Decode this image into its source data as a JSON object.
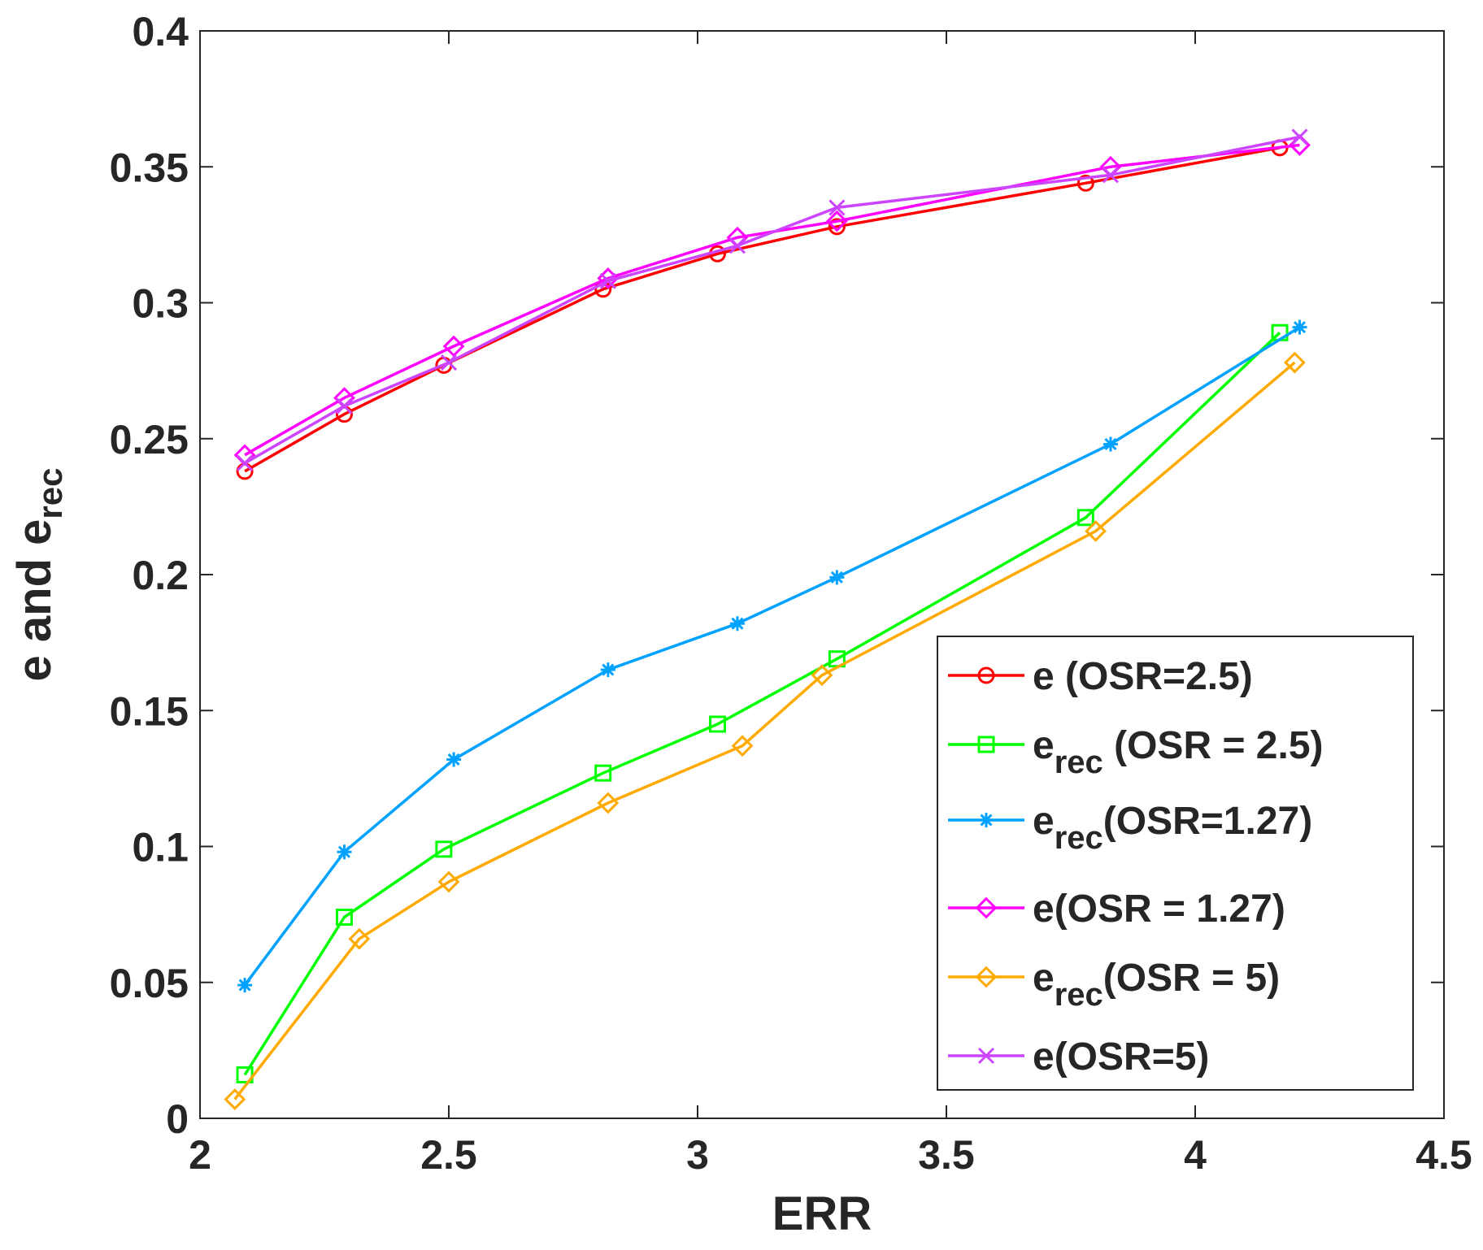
{
  "chart_data": {
    "type": "line",
    "title": "",
    "xlabel": "ERR",
    "ylabel_main": "e and e",
    "ylabel_sub": "rec",
    "xlim": [
      2,
      4.5
    ],
    "ylim": [
      0,
      0.4
    ],
    "xticks": [
      "2",
      "2.5",
      "3",
      "3.5",
      "4",
      "4.5"
    ],
    "yticks": [
      "0",
      "0.05",
      "0.1",
      "0.15",
      "0.2",
      "0.25",
      "0.3",
      "0.35",
      "0.4"
    ],
    "legend_position": "bottom-right",
    "series": [
      {
        "key": "e-osr-2-5",
        "label_main": "e (OSR=2.5)",
        "label_sub": "",
        "label_rest": "",
        "marker": "circle",
        "color": "#ff0000",
        "x": [
          2.09,
          2.29,
          2.49,
          2.81,
          3.04,
          3.28,
          3.78,
          4.17
        ],
        "y": [
          0.238,
          0.259,
          0.277,
          0.305,
          0.318,
          0.328,
          0.344,
          0.357
        ]
      },
      {
        "key": "erec-osr-2-5",
        "label_main": "e",
        "label_sub": "rec",
        "label_rest": " (OSR = 2.5)",
        "marker": "square",
        "color": "#00ff00",
        "x": [
          2.09,
          2.29,
          2.49,
          2.81,
          3.04,
          3.28,
          3.78,
          4.17
        ],
        "y": [
          0.016,
          0.074,
          0.099,
          0.127,
          0.145,
          0.169,
          0.221,
          0.289
        ]
      },
      {
        "key": "erec-osr-1-27",
        "label_main": "e",
        "label_sub": "rec",
        "label_rest": "(OSR=1.27)",
        "marker": "asterisk",
        "color": "#00a2ff",
        "x": [
          2.09,
          2.29,
          2.51,
          2.82,
          3.08,
          3.28,
          3.83,
          4.21
        ],
        "y": [
          0.049,
          0.098,
          0.132,
          0.165,
          0.182,
          0.199,
          0.248,
          0.291
        ]
      },
      {
        "key": "e-osr-1-27",
        "label_main": "e(OSR = 1.27)",
        "label_sub": "",
        "label_rest": "",
        "marker": "diamond",
        "color": "#ff00ff",
        "x": [
          2.09,
          2.29,
          2.51,
          2.82,
          3.08,
          3.28,
          3.83,
          4.21
        ],
        "y": [
          0.244,
          0.265,
          0.284,
          0.309,
          0.324,
          0.33,
          0.35,
          0.358
        ]
      },
      {
        "key": "erec-osr-5",
        "label_main": "e",
        "label_sub": "rec",
        "label_rest": "(OSR = 5)",
        "marker": "diamond",
        "color": "#ffaa00",
        "x": [
          2.07,
          2.32,
          2.5,
          2.82,
          3.09,
          3.25,
          3.8,
          4.2
        ],
        "y": [
          0.007,
          0.066,
          0.087,
          0.116,
          0.137,
          0.163,
          0.216,
          0.278
        ]
      },
      {
        "key": "e-osr-5",
        "label_main": "e(OSR=5)",
        "label_sub": "",
        "label_rest": "",
        "marker": "cross",
        "color": "#cc44ff",
        "x": [
          2.09,
          2.29,
          2.5,
          2.82,
          3.08,
          3.28,
          3.83,
          4.21
        ],
        "y": [
          0.241,
          0.262,
          0.278,
          0.308,
          0.321,
          0.335,
          0.347,
          0.361
        ]
      }
    ]
  }
}
